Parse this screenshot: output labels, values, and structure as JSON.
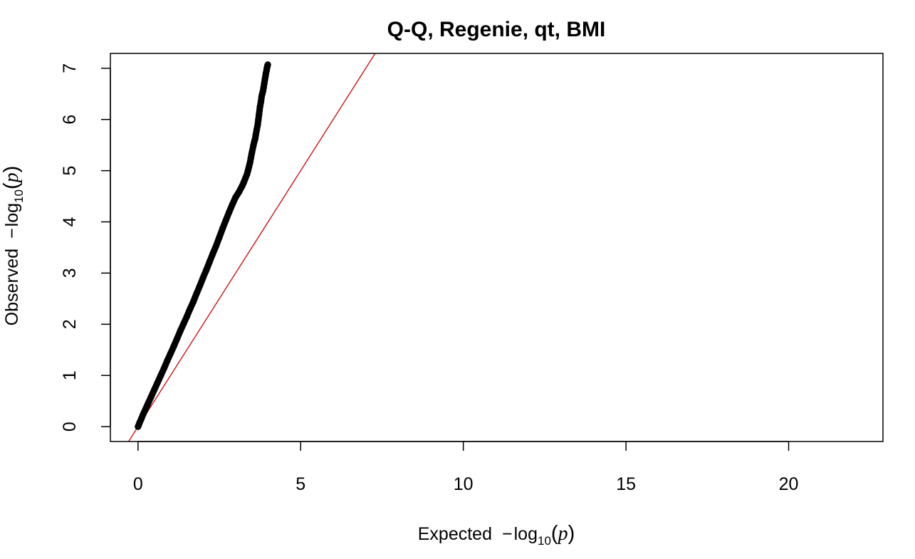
{
  "chart_data": {
    "type": "scatter",
    "title": "Q-Q, Regenie, qt, BMI",
    "xlabel": {
      "prefix": "Expected",
      "minus": "−",
      "log": "log",
      "sub": "10",
      "open": "(",
      "var": "p",
      "close": ")"
    },
    "ylabel": {
      "prefix": "Observed",
      "minus": "−",
      "log": "log",
      "sub": "10",
      "open": "(",
      "var": "p",
      "close": ")"
    },
    "xlim": [
      -0.85,
      22.9
    ],
    "ylim": [
      -0.29,
      7.29
    ],
    "xticks": [
      0,
      5,
      10,
      15,
      20
    ],
    "yticks": [
      0,
      1,
      2,
      3,
      4,
      5,
      6,
      7
    ],
    "grid": false,
    "legend": "none",
    "colors": {
      "points": "#000000",
      "reference_line": "#cc0000",
      "frame": "#000000"
    },
    "reference_line": {
      "slope": 1,
      "intercept": 0
    },
    "series": [
      {
        "x": [
          0,
          0.02,
          0.05,
          0.1,
          0.15,
          0.2,
          0.3,
          0.4,
          0.5,
          0.6,
          0.7,
          0.8,
          0.9,
          1.0,
          1.1,
          1.2,
          1.3,
          1.4,
          1.5,
          1.6,
          1.7,
          1.8,
          1.9,
          2.0,
          2.1,
          2.2,
          2.3,
          2.4,
          2.5,
          2.6,
          2.7,
          2.8,
          2.9,
          3.0,
          3.1,
          3.2,
          3.25,
          3.3,
          3.35,
          3.38,
          3.4,
          3.42,
          3.44,
          3.47,
          3.5,
          3.55,
          3.58,
          3.6,
          3.62,
          3.65,
          3.68,
          3.7,
          3.72,
          3.75,
          3.78,
          3.8,
          3.82,
          3.84,
          3.86,
          3.88,
          3.9,
          3.92,
          3.93,
          3.95,
          3.96,
          3.97,
          3.98,
          3.99
        ],
        "y": [
          0,
          0.03,
          0.08,
          0.15,
          0.23,
          0.3,
          0.44,
          0.58,
          0.72,
          0.86,
          1.0,
          1.14,
          1.29,
          1.43,
          1.57,
          1.72,
          1.87,
          2.01,
          2.15,
          2.3,
          2.44,
          2.6,
          2.75,
          2.91,
          3.06,
          3.22,
          3.38,
          3.53,
          3.7,
          3.87,
          4.03,
          4.19,
          4.34,
          4.48,
          4.58,
          4.7,
          4.77,
          4.85,
          4.93,
          5.0,
          5.05,
          5.1,
          5.15,
          5.25,
          5.35,
          5.5,
          5.58,
          5.62,
          5.7,
          5.8,
          5.9,
          6.0,
          6.1,
          6.25,
          6.35,
          6.45,
          6.5,
          6.55,
          6.62,
          6.7,
          6.78,
          6.85,
          6.9,
          6.95,
          7.0,
          7.02,
          7.05,
          7.07
        ]
      }
    ]
  }
}
